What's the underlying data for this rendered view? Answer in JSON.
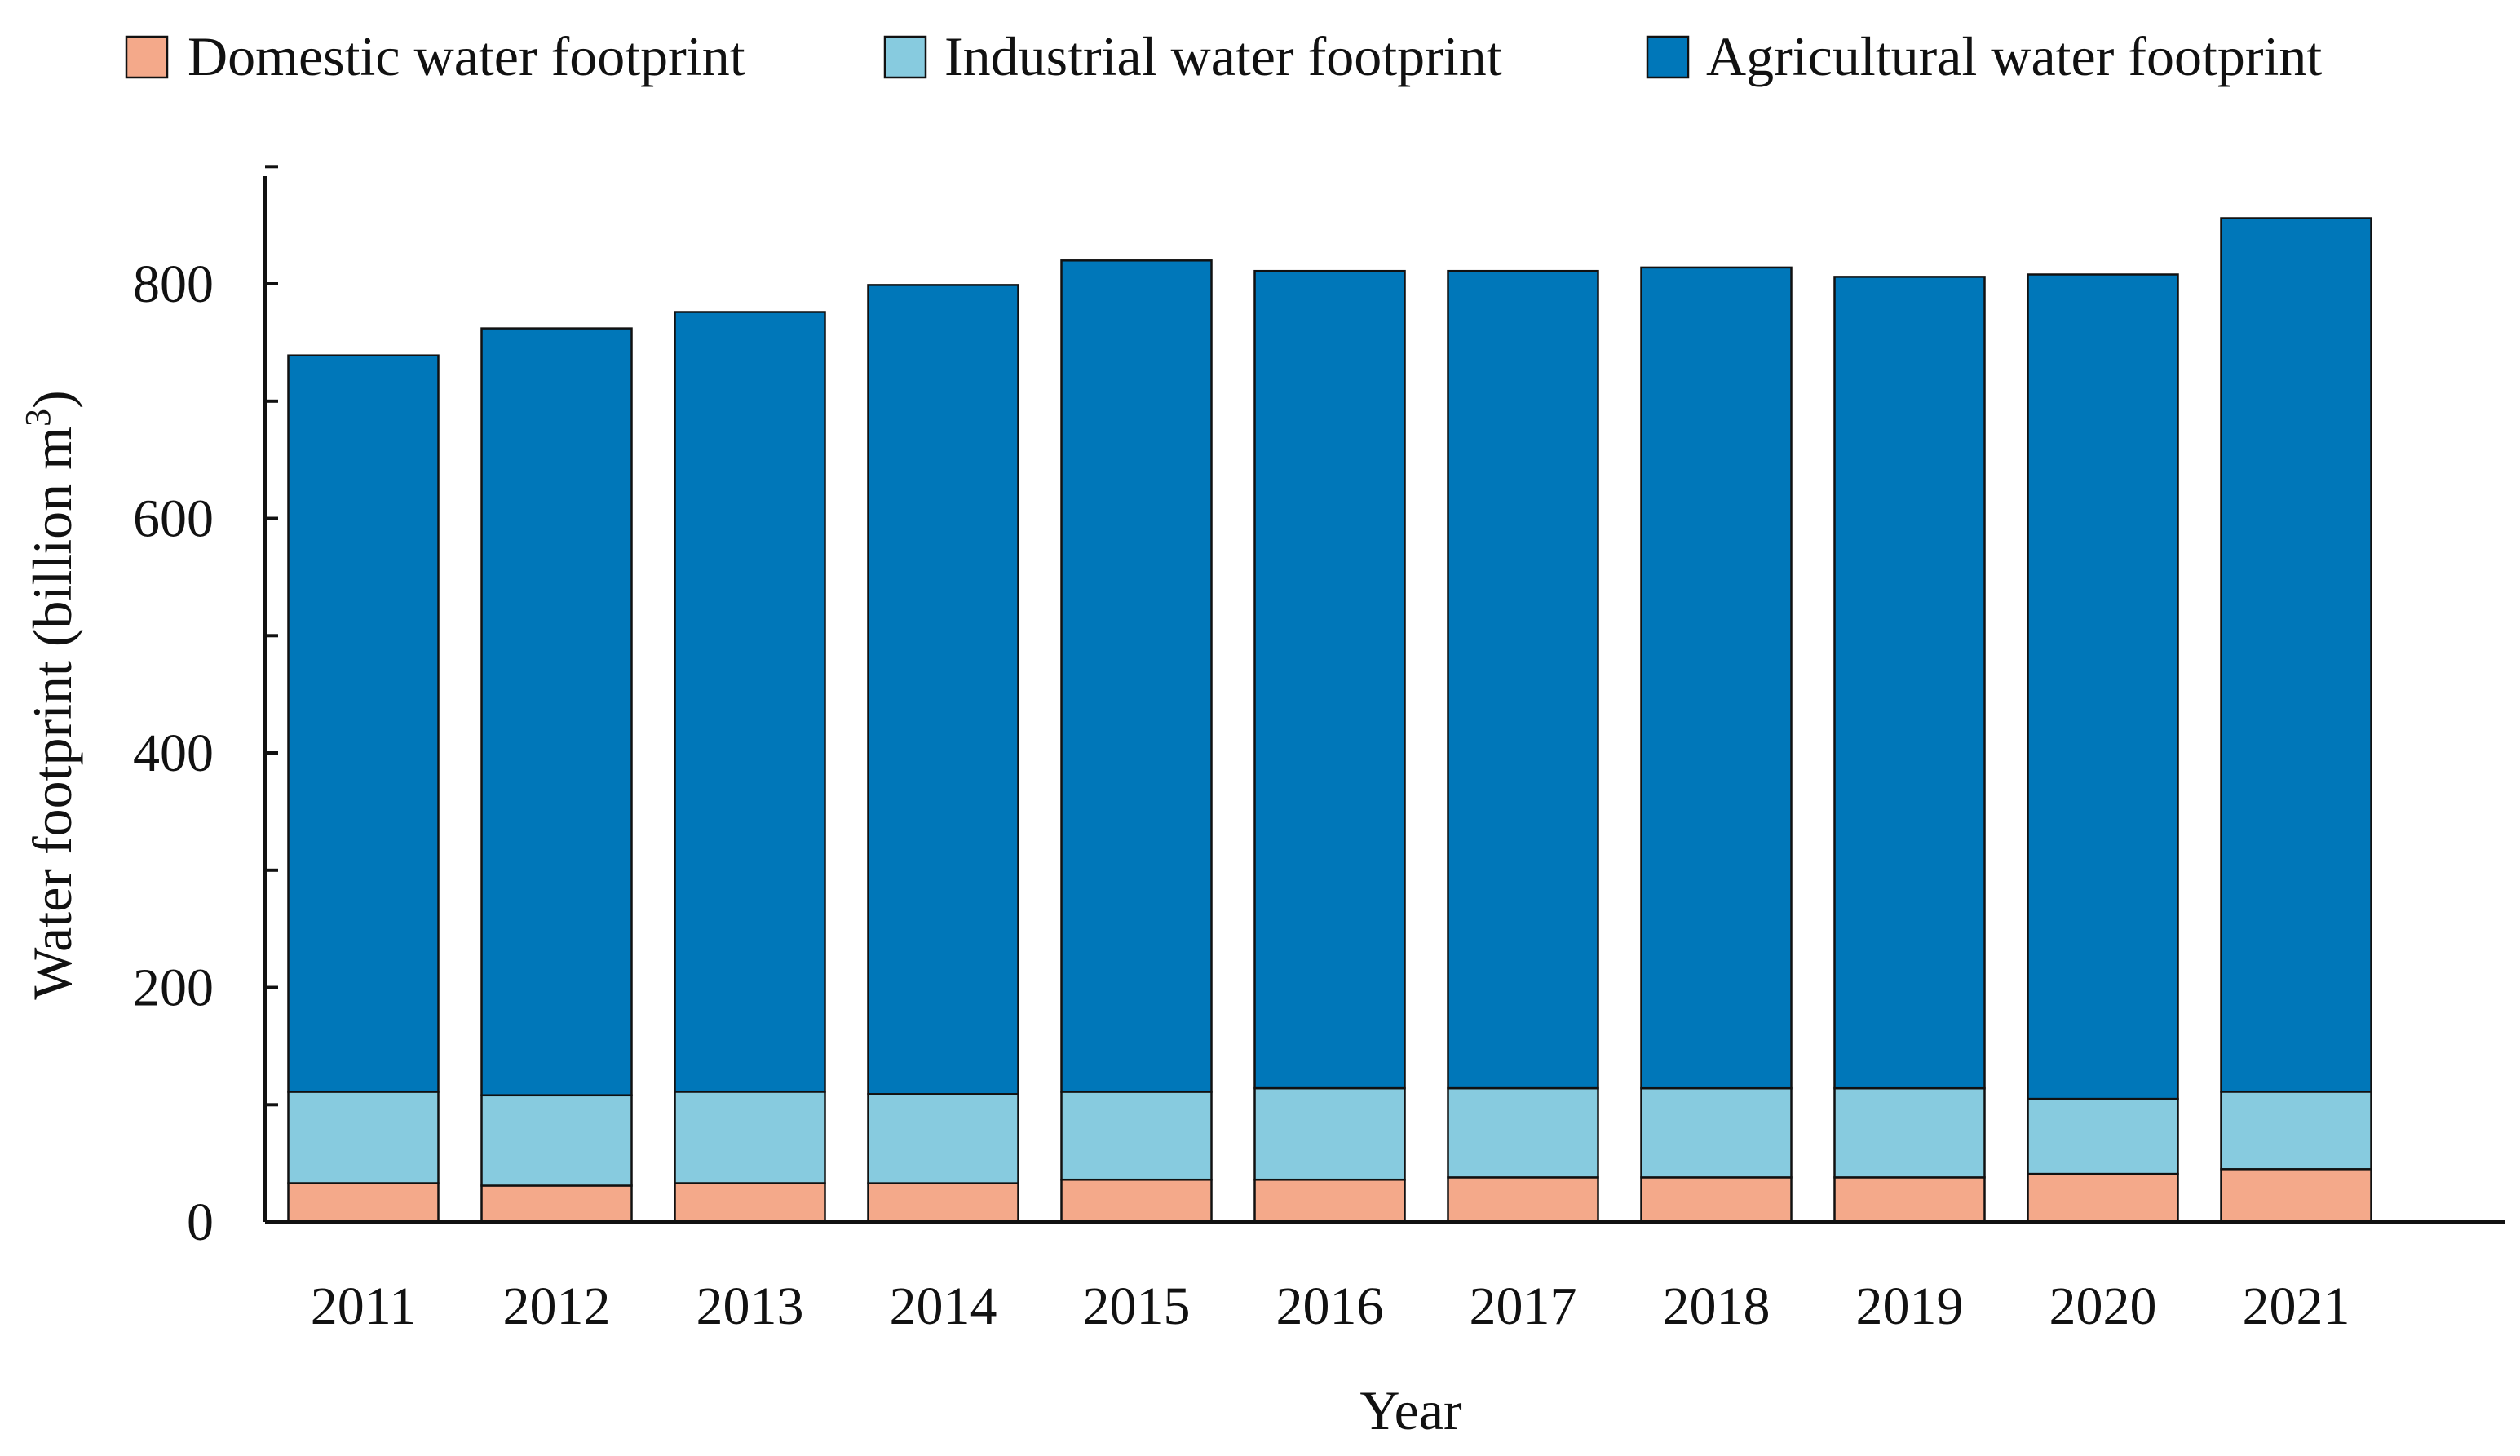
{
  "chart_data": {
    "type": "bar",
    "stacked": true,
    "title": "",
    "xlabel": "Year",
    "ylabel": "Water footprint (billion m3)",
    "ylabel_main": "Water footprint (billion m",
    "ylabel_sup": "3",
    "ylabel_close": ")",
    "ylim": [
      0,
      900
    ],
    "yticks": [
      0,
      200,
      400,
      600,
      800
    ],
    "ytick_labels": [
      "0",
      "200",
      "400",
      "600",
      "800"
    ],
    "categories": [
      "2011",
      "2012",
      "2013",
      "2014",
      "2015",
      "2016",
      "2017",
      "2018",
      "2019",
      "2020",
      "2021"
    ],
    "series": [
      {
        "name": "Domestic water footprint",
        "color": "#F4A98A",
        "values": [
          33,
          31,
          33,
          33,
          36,
          36,
          38,
          38,
          38,
          41,
          45
        ]
      },
      {
        "name": "Industrial water footprint",
        "color": "#87CBDF",
        "values": [
          78,
          77,
          78,
          76,
          75,
          78,
          76,
          76,
          76,
          64,
          66
        ]
      },
      {
        "name": "Agricultural water footprint",
        "color": "#0077B9",
        "values": [
          628,
          654,
          665,
          690,
          709,
          697,
          697,
          700,
          692,
          703,
          745
        ]
      }
    ],
    "legend_position": "top"
  }
}
